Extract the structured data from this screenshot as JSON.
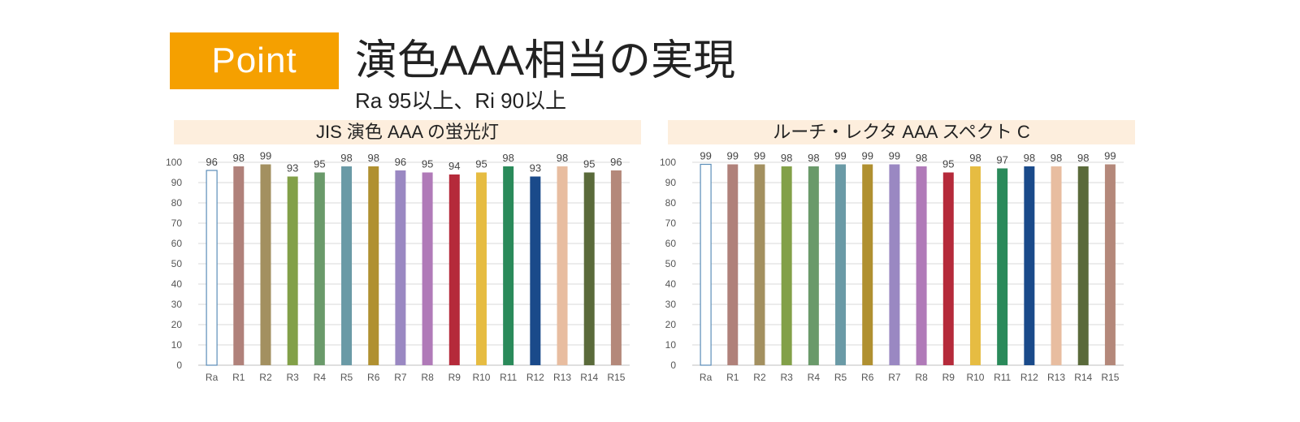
{
  "header": {
    "badge": "Point",
    "title": "演色AAA相当の実現",
    "subtitle": "Ra 95以上、Ri 90以上"
  },
  "colors": {
    "badge": "#f5a000",
    "chart_header_bg": "#fdeedd",
    "Ra": "#ffffff",
    "Ra_outline": "#5b8db8",
    "R1": "#b0817a",
    "R2": "#a39060",
    "R3": "#82a048",
    "R4": "#6a9a6a",
    "R5": "#6a9aa6",
    "R6": "#b09030",
    "R7": "#9a88c2",
    "R8": "#b07ab8",
    "R9": "#b52a3a",
    "R10": "#e6bc42",
    "R11": "#2a8a5a",
    "R12": "#1a4a8a",
    "R13": "#e8bda0",
    "R14": "#5a6a3a",
    "R15": "#b4887a"
  },
  "chart_data": [
    {
      "type": "bar",
      "title": "JIS 演色 AAA の蛍光灯",
      "categories": [
        "Ra",
        "R1",
        "R2",
        "R3",
        "R4",
        "R5",
        "R6",
        "R7",
        "R8",
        "R9",
        "R10",
        "R11",
        "R12",
        "R13",
        "R14",
        "R15"
      ],
      "values": [
        96,
        98,
        99,
        93,
        95,
        98,
        98,
        96,
        95,
        94,
        95,
        98,
        93,
        98,
        95,
        96
      ],
      "ylim": [
        0,
        100
      ],
      "yticks": [
        0,
        10,
        20,
        30,
        40,
        50,
        60,
        70,
        80,
        90,
        100
      ],
      "grid": true,
      "data_labels": true
    },
    {
      "type": "bar",
      "title": "ルーチ・レクタ AAA スペクト C",
      "categories": [
        "Ra",
        "R1",
        "R2",
        "R3",
        "R4",
        "R5",
        "R6",
        "R7",
        "R8",
        "R9",
        "R10",
        "R11",
        "R12",
        "R13",
        "R14",
        "R15"
      ],
      "values": [
        99,
        99,
        99,
        98,
        98,
        99,
        99,
        99,
        98,
        95,
        98,
        97,
        98,
        98,
        98,
        99
      ],
      "ylim": [
        0,
        100
      ],
      "yticks": [
        0,
        10,
        20,
        30,
        40,
        50,
        60,
        70,
        80,
        90,
        100
      ],
      "grid": true,
      "data_labels": true
    }
  ]
}
